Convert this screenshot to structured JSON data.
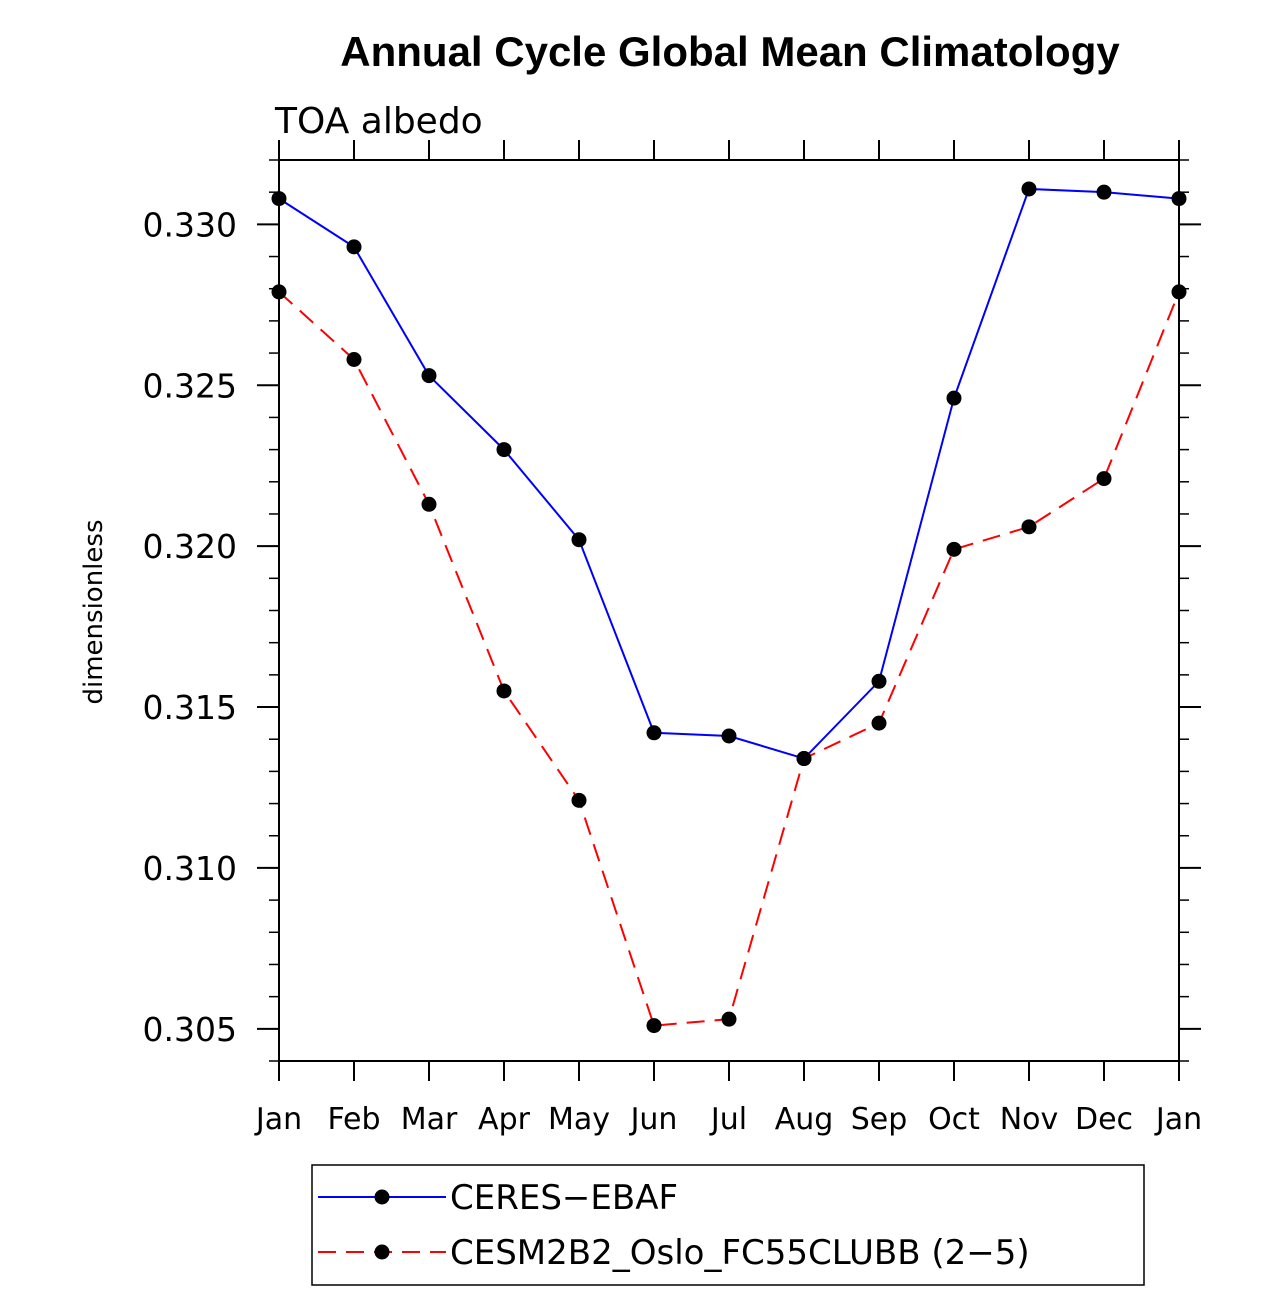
{
  "chart_data": {
    "type": "line",
    "title": "Annual Cycle Global Mean Climatology",
    "subtitle": "TOA albedo",
    "ylabel": "dimensionless",
    "xlabel": "",
    "categories": [
      "Jan",
      "Feb",
      "Mar",
      "Apr",
      "May",
      "Jun",
      "Jul",
      "Aug",
      "Sep",
      "Oct",
      "Nov",
      "Dec",
      "Jan"
    ],
    "ylim": [
      0.304,
      0.332
    ],
    "yticks": [
      0.305,
      0.31,
      0.315,
      0.32,
      0.325,
      0.33
    ],
    "ytick_labels": [
      "0.305",
      "0.310",
      "0.315",
      "0.320",
      "0.325",
      "0.330"
    ],
    "yminor_step": 0.001,
    "grid": false,
    "series": [
      {
        "name": "CERES-EBAF",
        "color": "#0000ff",
        "dash": "solid",
        "values": [
          0.3308,
          0.3293,
          0.3253,
          0.323,
          0.3202,
          0.3142,
          0.3141,
          0.3134,
          0.3158,
          0.3246,
          0.3311,
          0.331,
          0.3308
        ]
      },
      {
        "name": "CESM2B2_Oslo_FC55CLUBB (2-5)",
        "color": "#ff0000",
        "dash": "dashed",
        "values": [
          0.3279,
          0.3258,
          0.3213,
          0.3155,
          0.3121,
          0.3051,
          0.3053,
          0.3134,
          0.3145,
          0.3199,
          0.3206,
          0.3221,
          0.3279
        ]
      }
    ],
    "legend": {
      "placement": "bottom",
      "entries": [
        "CERES−EBAF",
        "CESM2B2_Oslo_FC55CLUBB (2−5)"
      ]
    }
  }
}
